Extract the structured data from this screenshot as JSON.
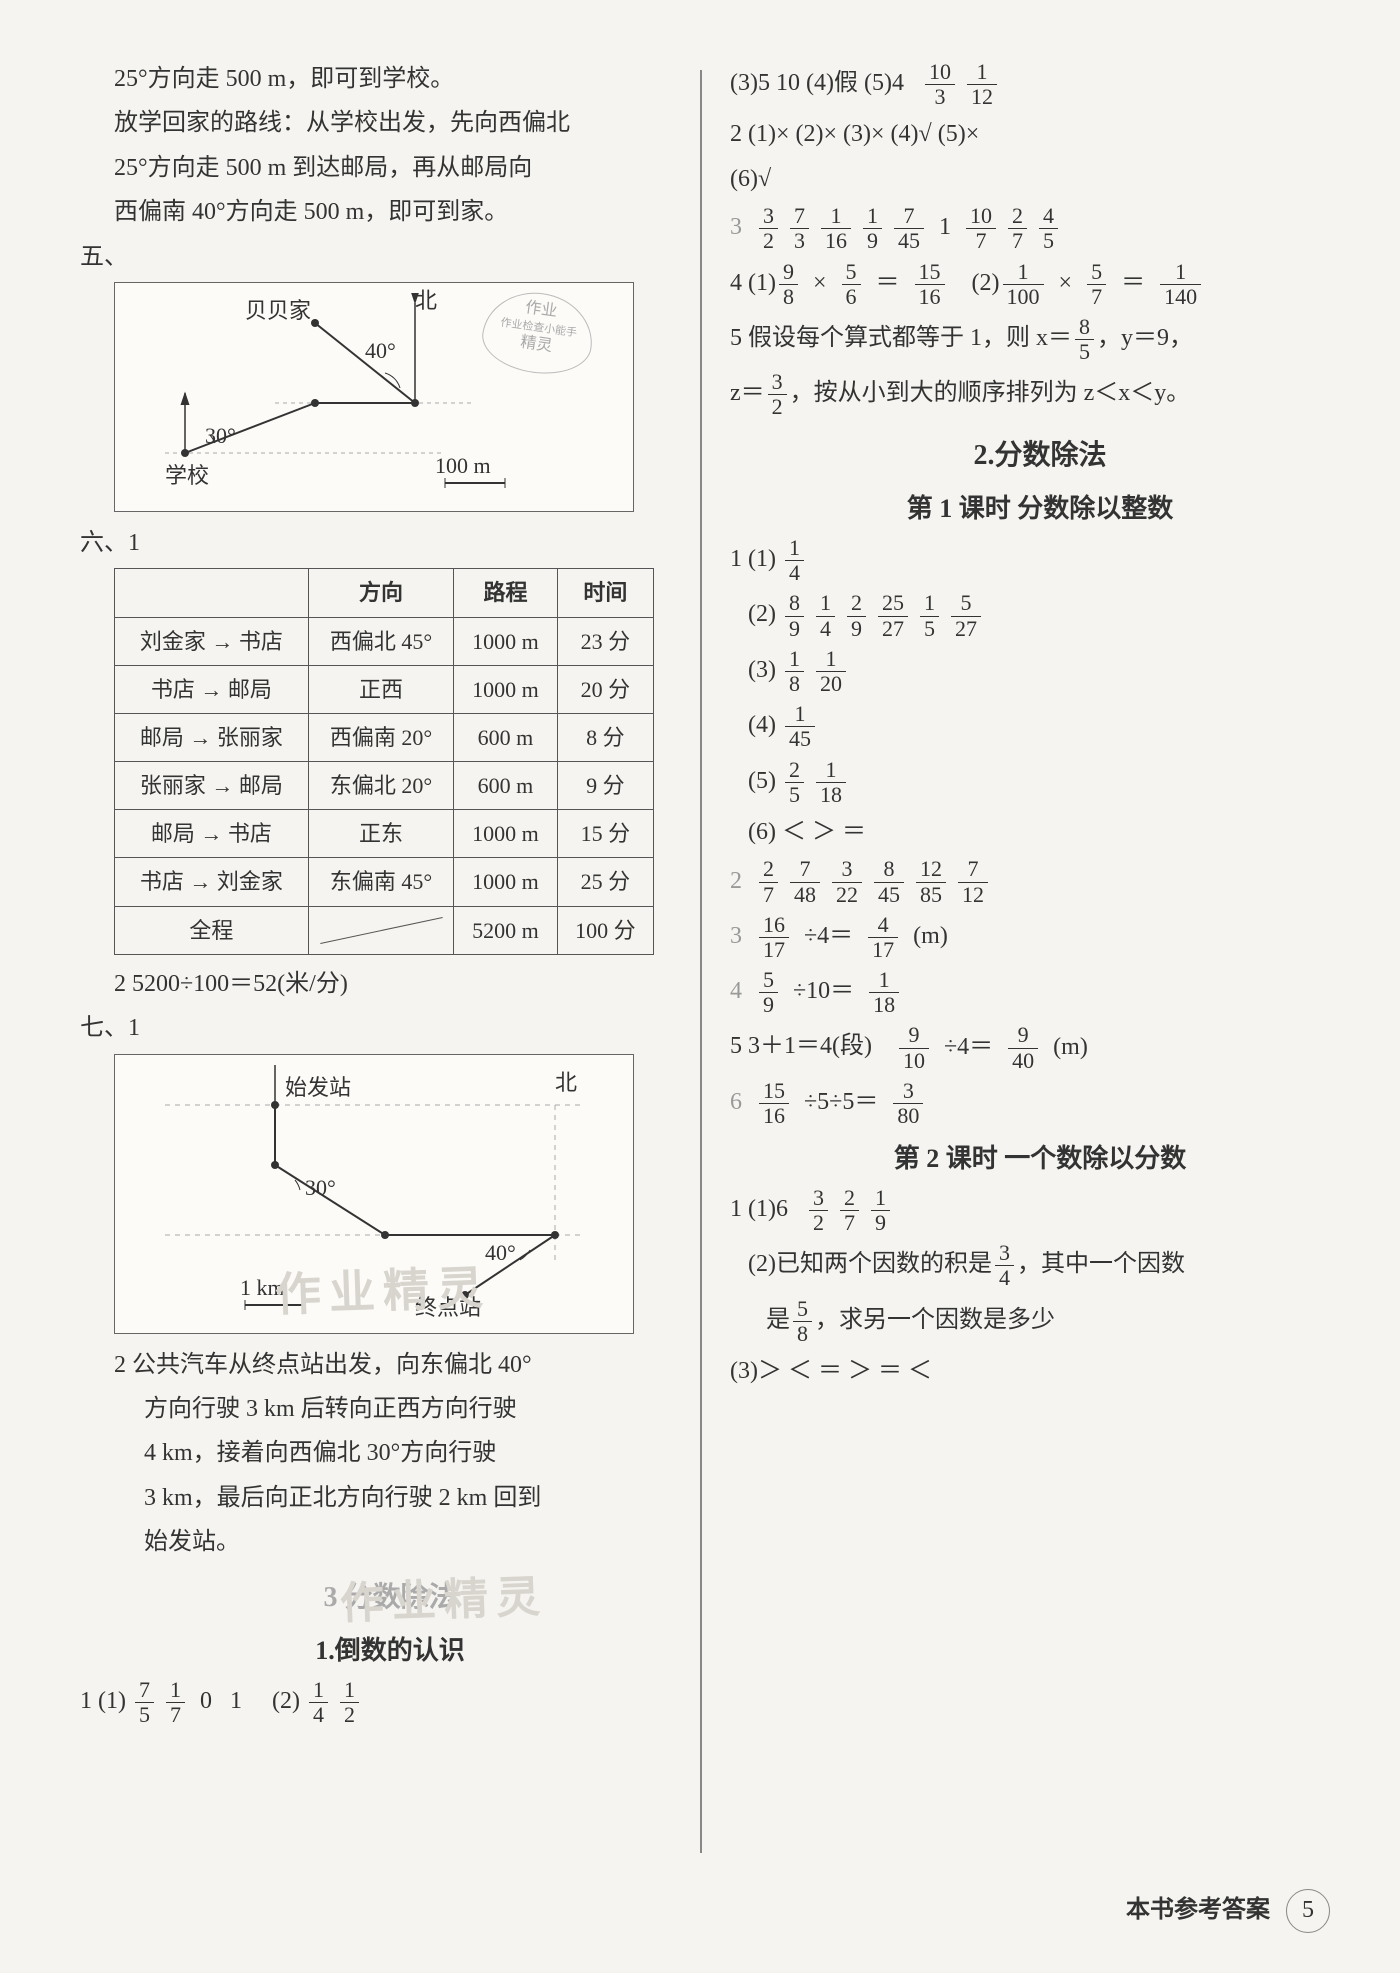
{
  "left": {
    "intro_lines": [
      "25°方向走 500 m，即可到学校。",
      "放学回家的路线：从学校出发，先向西偏北",
      "25°方向走 500 m 到达邮局，再从邮局向",
      "西偏南 40°方向走 500 m，即可到家。"
    ],
    "sec5": "五、",
    "diag5": {
      "beibei": "贝贝家",
      "north": "北",
      "angle1": "40°",
      "angle2": "30°",
      "school": "学校",
      "scale": "100 m",
      "stamp_lines": [
        "作业",
        "作业检查小能手",
        "精灵"
      ]
    },
    "sec6": "六、1",
    "table": {
      "headers": [
        "",
        "方向",
        "路程",
        "时间"
      ],
      "rows": [
        [
          "刘金家 → 书店",
          "西偏北 45°",
          "1000 m",
          "23 分"
        ],
        [
          "书店 → 邮局",
          "正西",
          "1000 m",
          "20 分"
        ],
        [
          "邮局 → 张丽家",
          "西偏南 20°",
          "600 m",
          "8 分"
        ],
        [
          "张丽家 → 邮局",
          "东偏北 20°",
          "600 m",
          "9 分"
        ],
        [
          "邮局 → 书店",
          "正东",
          "1000 m",
          "15 分"
        ],
        [
          "书店 → 刘金家",
          "东偏南 45°",
          "1000 m",
          "25 分"
        ],
        [
          "全程",
          "SLASH",
          "5200 m",
          "100 分"
        ]
      ]
    },
    "calc6_2": "2  5200÷100＝52(米/分)",
    "sec7": "七、1",
    "diag7": {
      "start": "始发站",
      "north": "北",
      "angle1": "30°",
      "angle2": "40°",
      "scale": "1 km",
      "end": "终点站"
    },
    "bus_lines": [
      "2  公共汽车从终点站出发，向东偏北 40°",
      "方向行驶 3 km 后转向正西方向行驶",
      "4 km，接着向西偏北 30°方向行驶",
      "3 km，最后向正北方向行驶 2 km 回到",
      "始发站。"
    ],
    "chapter3": "3    分数除法",
    "sub1": "1.倒数的认识",
    "q1_1_prefix": "1 (1)",
    "q1_1_items": [
      [
        "7",
        "5"
      ],
      [
        "1",
        "7"
      ],
      "0",
      "1"
    ],
    "q1_2_prefix": "(2)",
    "q1_2_items": [
      [
        "1",
        "4"
      ],
      [
        "1",
        "2"
      ]
    ],
    "watermark1": "作业精灵",
    "watermark2": "作业精灵"
  },
  "right": {
    "line1_a": "(3)5   10   (4)假   (5)4",
    "line1_fracs": [
      [
        "10",
        "3"
      ],
      [
        "1",
        "12"
      ]
    ],
    "q2": "2 (1)×   (2)×   (3)×   (4)√   (5)×",
    "q2b": "   (6)√",
    "q3_prefix": "3",
    "q3_fracs": [
      [
        "3",
        "2"
      ],
      [
        "7",
        "3"
      ],
      [
        "1",
        "16"
      ],
      [
        "1",
        "9"
      ],
      [
        "7",
        "45"
      ],
      "1",
      [
        "10",
        "7"
      ],
      [
        "2",
        "7"
      ],
      [
        "4",
        "5"
      ]
    ],
    "q4_1": "4 (1)",
    "q4_1_eq": [
      [
        "9",
        "8"
      ],
      "×",
      [
        "5",
        "6"
      ],
      "＝",
      [
        "15",
        "16"
      ]
    ],
    "q4_2": "(2)",
    "q4_2_eq": [
      [
        "1",
        "100"
      ],
      "×",
      [
        "5",
        "7"
      ],
      "＝",
      [
        "1",
        "140"
      ]
    ],
    "q5a": "5 假设每个算式都等于 1，则 x＝",
    "q5a_frac": [
      "8",
      "5"
    ],
    "q5a_tail": "，y＝9，",
    "q5b_pre": "   z＝",
    "q5b_frac": [
      "3",
      "2"
    ],
    "q5b_tail": "，按从小到大的顺序排列为 z＜x＜y。",
    "h2": "2.分数除法",
    "h3a": "第 1 课时    分数除以整数",
    "p1_items": [
      {
        "label": "1 (1)",
        "fracs": [
          [
            "1",
            "4"
          ]
        ]
      },
      {
        "label": "   (2)",
        "fracs": [
          [
            "8",
            "9"
          ],
          [
            "1",
            "4"
          ],
          [
            "2",
            "9"
          ],
          [
            "25",
            "27"
          ],
          [
            "1",
            "5"
          ],
          [
            "5",
            "27"
          ]
        ]
      },
      {
        "label": "   (3)",
        "fracs": [
          [
            "1",
            "8"
          ],
          [
            "1",
            "20"
          ]
        ]
      },
      {
        "label": "   (4)",
        "fracs": [
          [
            "1",
            "45"
          ]
        ]
      },
      {
        "label": "   (5)",
        "fracs": [
          [
            "2",
            "5"
          ],
          [
            "1",
            "18"
          ]
        ]
      },
      {
        "label": "   (6)",
        "text": "＜   ＞   ＝"
      }
    ],
    "p2_prefix": "2",
    "p2_fracs": [
      [
        "2",
        "7"
      ],
      [
        "7",
        "48"
      ],
      [
        "3",
        "22"
      ],
      [
        "8",
        "45"
      ],
      [
        "12",
        "85"
      ],
      [
        "7",
        "12"
      ]
    ],
    "p3_prefix": "3",
    "p3_eq": [
      [
        "16",
        "17"
      ],
      "÷4＝",
      [
        "4",
        "17"
      ],
      "(m)"
    ],
    "p4_prefix": "4",
    "p4_eq": [
      [
        "5",
        "9"
      ],
      "÷10＝",
      [
        "1",
        "18"
      ]
    ],
    "p5": "5 3＋1＝4(段)",
    "p5_eq": [
      [
        "9",
        "10"
      ],
      "÷4＝",
      [
        "9",
        "40"
      ],
      "(m)"
    ],
    "p6_prefix": "6",
    "p6_eq": [
      [
        "15",
        "16"
      ],
      "÷5÷5＝",
      [
        "3",
        "80"
      ]
    ],
    "h3b": "第 2 课时    一个数除以分数",
    "r1_1": "1 (1)6",
    "r1_1_fracs": [
      [
        "3",
        "2"
      ],
      [
        "2",
        "7"
      ],
      [
        "1",
        "9"
      ]
    ],
    "r1_2a": "   (2)已知两个因数的积是",
    "r1_2a_frac": [
      "3",
      "4"
    ],
    "r1_2a_tail": "，其中一个因数",
    "r1_2b_pre": "      是",
    "r1_2b_frac": [
      "5",
      "8"
    ],
    "r1_2b_tail": "，求另一个因数是多少",
    "r1_3": "   (3)＞   ＜   ＝   ＞   ＝   ＜"
  },
  "footer": {
    "label": "本书参考答案",
    "page": "5"
  }
}
